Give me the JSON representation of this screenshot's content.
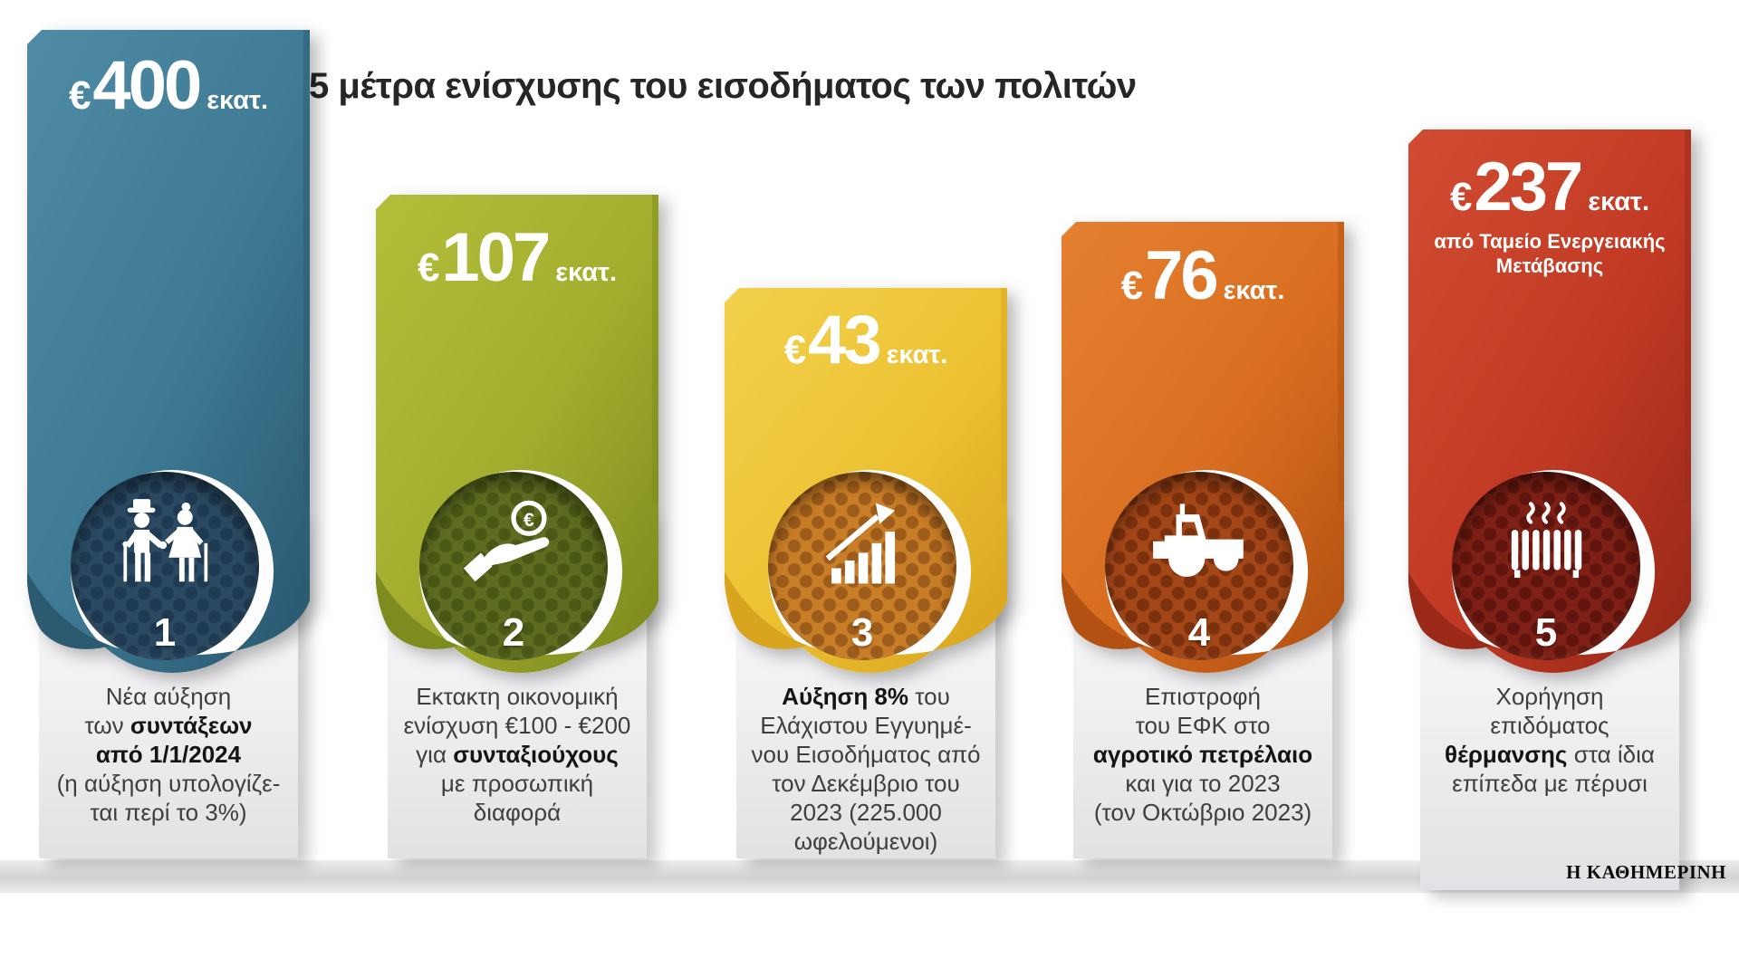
{
  "title": "5 μέτρα ενίσχυσης του εισοδήματος των πολιτών",
  "brand": "Η ΚΑΘΗΜΕΡΙΝΗ",
  "cards": [
    {
      "number": "1",
      "amount": {
        "currency": "€",
        "value": "400",
        "unit": "εκατ."
      },
      "subtitle": [],
      "icon": "elderly-couple-icon",
      "colors": {
        "sheet_light": "#4f8ba5",
        "sheet": "#3e7a94",
        "sheet_dark": "#2b5a71",
        "circle": "#2b4a61",
        "dot": "#1e3952"
      },
      "description": [
        [
          {
            "t": "Νέα αύξηση",
            "b": false
          }
        ],
        [
          {
            "t": "των ",
            "b": false
          },
          {
            "t": "συντάξεων",
            "b": true
          }
        ],
        [
          {
            "t": "από 1/1/2024",
            "b": true
          }
        ],
        [
          {
            "t": "(η αύξηση υπολογίζε-",
            "b": false
          }
        ],
        [
          {
            "t": "ται περί το 3%)",
            "b": false
          }
        ]
      ]
    },
    {
      "number": "2",
      "amount": {
        "currency": "€",
        "value": "107",
        "unit": "εκατ."
      },
      "subtitle": [],
      "icon": "hand-euro-icon",
      "colors": {
        "sheet_light": "#b3bf3a",
        "sheet": "#a2ad2e",
        "sheet_dark": "#7e8b1e",
        "circle": "#5e6c21",
        "dot": "#495814"
      },
      "description": [
        [
          {
            "t": "Εκτακτη οικονομική",
            "b": false
          }
        ],
        [
          {
            "t": "ενίσχυση €100 - €200",
            "b": false
          }
        ],
        [
          {
            "t": "για ",
            "b": false
          },
          {
            "t": "συνταξιούχους",
            "b": true
          }
        ],
        [
          {
            "t": "με προσωπική",
            "b": false
          }
        ],
        [
          {
            "t": "διαφορά",
            "b": false
          }
        ]
      ]
    },
    {
      "number": "3",
      "amount": {
        "currency": "€",
        "value": "43",
        "unit": "εκατ."
      },
      "subtitle": [],
      "icon": "growth-chart-icon",
      "colors": {
        "sheet_light": "#f3d14d",
        "sheet": "#ecc232",
        "sheet_dark": "#d9a51f",
        "circle": "#c87d27",
        "dot": "#9d5c1b"
      },
      "description": [
        [
          {
            "t": "Αύξηση 8%",
            "b": true
          },
          {
            "t": " του",
            "b": false
          }
        ],
        [
          {
            "t": "Ελάχιστου Εγγυημέ-",
            "b": false
          }
        ],
        [
          {
            "t": "νου Εισοδήματος από",
            "b": false
          }
        ],
        [
          {
            "t": "τον Δεκέμβριο του",
            "b": false
          }
        ],
        [
          {
            "t": "2023 (225.000",
            "b": false
          }
        ],
        [
          {
            "t": "ωφελούμενοι)",
            "b": false
          }
        ]
      ]
    },
    {
      "number": "4",
      "amount": {
        "currency": "€",
        "value": "76",
        "unit": "εκατ."
      },
      "subtitle": [],
      "icon": "tractor-icon",
      "colors": {
        "sheet_light": "#e58031",
        "sheet": "#d96e20",
        "sheet_dark": "#b35112",
        "circle": "#a34618",
        "dot": "#7c310e"
      },
      "description": [
        [
          {
            "t": "Επιστροφή",
            "b": false
          }
        ],
        [
          {
            "t": "του ΕΦΚ στο",
            "b": false
          }
        ],
        [
          {
            "t": "αγροτικό πετρέλαιο",
            "b": true
          }
        ],
        [
          {
            "t": "και για το 2023",
            "b": false
          }
        ],
        [
          {
            "t": "(τον Οκτώβριο 2023)",
            "b": false
          }
        ]
      ]
    },
    {
      "number": "5",
      "amount": {
        "currency": "€",
        "value": "237",
        "unit": "εκατ."
      },
      "subtitle": [
        "από Ταμείο Ενεργειακής",
        "Μετάβασης"
      ],
      "icon": "radiator-icon",
      "colors": {
        "sheet_light": "#d14c32",
        "sheet": "#c23a24",
        "sheet_dark": "#9a2918",
        "circle": "#7e2015",
        "dot": "#5f150d"
      },
      "description": [
        [
          {
            "t": "Χορήγηση",
            "b": false
          }
        ],
        [
          {
            "t": "επιδόματος",
            "b": false
          }
        ],
        [
          {
            "t": "θέρμανσης",
            "b": true
          },
          {
            "t": " στα ίδια",
            "b": false
          }
        ],
        [
          {
            "t": "επίπεδα με πέρυσι",
            "b": false
          }
        ]
      ]
    }
  ]
}
